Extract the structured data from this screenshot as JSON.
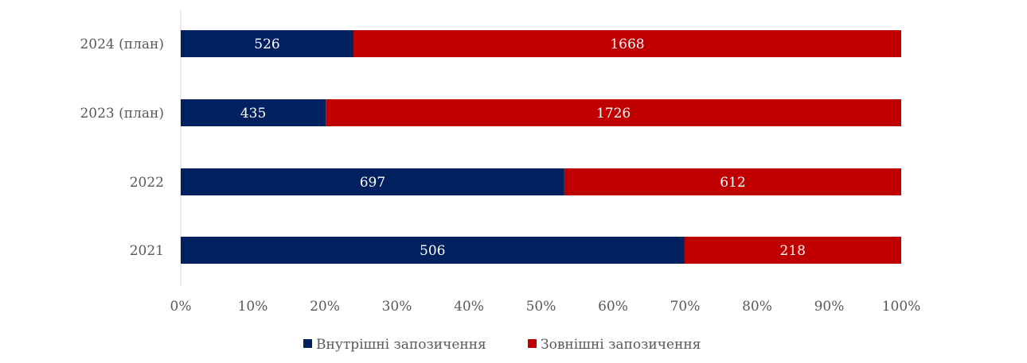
{
  "chart_data": {
    "type": "bar",
    "orientation": "horizontal",
    "stacking": "percent",
    "categories": [
      "2024 (план)",
      "2023 (план)",
      "2022",
      "2021"
    ],
    "series": [
      {
        "name": "Внутрішні запозичення",
        "color": "#002060",
        "values": [
          526,
          435,
          697,
          506
        ]
      },
      {
        "name": "Зовнішні запозичення",
        "color": "#C00000",
        "values": [
          1668,
          1726,
          612,
          218
        ]
      }
    ],
    "x_ticks": [
      "0%",
      "10%",
      "20%",
      "30%",
      "40%",
      "50%",
      "60%",
      "70%",
      "80%",
      "90%",
      "100%"
    ],
    "xlim": [
      0,
      100
    ],
    "grid": false,
    "legend_position": "bottom",
    "title": "",
    "xlabel": "",
    "ylabel": ""
  }
}
